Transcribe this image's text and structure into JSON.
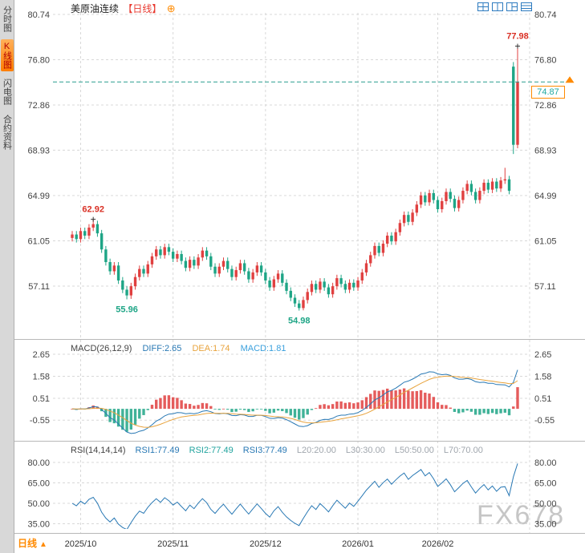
{
  "header": {
    "symbol": "美原油连续",
    "period": "【日线】",
    "add_icon": "⊕"
  },
  "sidebar": {
    "items": [
      {
        "label": "分时图",
        "active": false
      },
      {
        "label": "K线图",
        "active": true
      },
      {
        "label": "闪电图",
        "active": false
      },
      {
        "label": "合约资料",
        "active": false
      }
    ]
  },
  "toolbar": {
    "icons": [
      {
        "name": "layout-grid-2x2"
      },
      {
        "name": "layout-split-vertical"
      },
      {
        "name": "layout-one-plus-two"
      },
      {
        "name": "layout-rows"
      }
    ]
  },
  "bottom_tab": {
    "label": "日线",
    "arrow": "▲"
  },
  "watermark": "FX678",
  "colors": {
    "up": "#e04040",
    "down": "#1ea586",
    "diff_line": "#2878b4",
    "dea_line": "#e8a33d",
    "macd_readout": "#3aa0dd",
    "rsi1": "#2878b4",
    "rsi2": "#20a39e",
    "rsi3": "#2878b4",
    "muted": "#a0a6ad",
    "grid": "#d8d8d8",
    "separator": "#b8b8b8",
    "accent_orange": "#ff8a00",
    "annotation_red": "#d93025",
    "annotation_green": "#1ea586",
    "current_line": "#2a9d8f",
    "axis_text": "#444444",
    "watermark": "#c6c6c6",
    "icon_blue": "#2d7bbf",
    "period_red": "#e8392f"
  },
  "chart_data": [
    {
      "type": "candlestick",
      "title": "美原油连续 日线",
      "y_ticks": [
        "80.74",
        "76.80",
        "72.86",
        "68.93",
        "64.99",
        "61.05",
        "57.11"
      ],
      "y_range": [
        52.6,
        80.74
      ],
      "x_tick_labels": [
        "2025/10",
        "2025/11",
        "2025/12",
        "2026/01",
        "2026/02"
      ],
      "x_tick_indices": [
        2,
        24,
        46,
        68,
        87
      ],
      "current_price": "74.87",
      "annotations": [
        {
          "text": "62.92",
          "index": 5,
          "price": 62.92,
          "placement": "above",
          "color": "red",
          "marker": true
        },
        {
          "text": "55.96",
          "index": 13,
          "price": 55.96,
          "placement": "below",
          "color": "green",
          "marker": false
        },
        {
          "text": "54.98",
          "index": 54,
          "price": 54.98,
          "placement": "below",
          "color": "green",
          "marker": false
        },
        {
          "text": "77.98",
          "index": 106,
          "price": 77.98,
          "placement": "above",
          "color": "red",
          "marker": true
        }
      ],
      "candles": [
        [
          61.3,
          61.9,
          61.0,
          61.6
        ],
        [
          61.6,
          61.9,
          60.9,
          61.2
        ],
        [
          61.2,
          62.2,
          60.9,
          61.9
        ],
        [
          61.9,
          62.2,
          61.2,
          61.5
        ],
        [
          61.5,
          62.5,
          61.2,
          62.2
        ],
        [
          62.2,
          62.92,
          61.9,
          62.5
        ],
        [
          62.5,
          62.8,
          61.4,
          61.7
        ],
        [
          61.7,
          62.0,
          60.0,
          60.3
        ],
        [
          60.3,
          60.6,
          58.9,
          59.2
        ],
        [
          59.2,
          59.5,
          58.1,
          58.4
        ],
        [
          58.4,
          59.2,
          58.1,
          58.9
        ],
        [
          58.9,
          59.2,
          57.3,
          57.6
        ],
        [
          57.6,
          57.9,
          56.5,
          56.8
        ],
        [
          56.8,
          57.1,
          55.96,
          56.3
        ],
        [
          56.3,
          57.4,
          56.0,
          57.1
        ],
        [
          57.1,
          58.2,
          56.8,
          57.9
        ],
        [
          57.9,
          58.9,
          57.6,
          58.6
        ],
        [
          58.6,
          58.9,
          57.9,
          58.2
        ],
        [
          58.2,
          59.3,
          57.9,
          59.0
        ],
        [
          59.0,
          60.0,
          58.7,
          59.7
        ],
        [
          59.7,
          60.6,
          59.4,
          60.3
        ],
        [
          60.3,
          60.6,
          59.5,
          59.8
        ],
        [
          59.8,
          60.8,
          59.5,
          60.5
        ],
        [
          60.5,
          60.8,
          59.8,
          60.1
        ],
        [
          60.1,
          60.4,
          59.2,
          59.5
        ],
        [
          59.5,
          60.2,
          59.2,
          59.9
        ],
        [
          59.9,
          60.2,
          59.0,
          59.3
        ],
        [
          59.3,
          59.6,
          58.4,
          58.7
        ],
        [
          58.7,
          59.7,
          58.4,
          59.4
        ],
        [
          59.4,
          59.7,
          58.6,
          58.9
        ],
        [
          58.9,
          59.9,
          58.6,
          59.6
        ],
        [
          59.6,
          60.5,
          59.3,
          60.2
        ],
        [
          60.2,
          60.5,
          59.4,
          59.7
        ],
        [
          59.7,
          60.0,
          58.5,
          58.8
        ],
        [
          58.8,
          59.1,
          57.9,
          58.2
        ],
        [
          58.2,
          59.1,
          57.9,
          58.8
        ],
        [
          58.8,
          59.6,
          58.5,
          59.3
        ],
        [
          59.3,
          59.6,
          58.3,
          58.6
        ],
        [
          58.6,
          58.9,
          57.6,
          57.9
        ],
        [
          57.9,
          58.8,
          57.6,
          58.5
        ],
        [
          58.5,
          59.4,
          58.2,
          59.1
        ],
        [
          59.1,
          59.4,
          58.1,
          58.4
        ],
        [
          58.4,
          58.7,
          57.4,
          57.7
        ],
        [
          57.7,
          58.6,
          57.4,
          58.3
        ],
        [
          58.3,
          59.2,
          58.0,
          58.9
        ],
        [
          58.9,
          59.2,
          58.0,
          58.3
        ],
        [
          58.3,
          58.6,
          57.3,
          57.6
        ],
        [
          57.6,
          57.9,
          56.7,
          57.0
        ],
        [
          57.0,
          58.0,
          56.7,
          57.7
        ],
        [
          57.7,
          58.5,
          57.4,
          58.2
        ],
        [
          58.2,
          58.5,
          57.1,
          57.4
        ],
        [
          57.4,
          57.7,
          56.4,
          56.7
        ],
        [
          56.7,
          57.0,
          55.8,
          56.1
        ],
        [
          56.1,
          56.4,
          55.3,
          55.6
        ],
        [
          55.6,
          55.9,
          54.98,
          55.2
        ],
        [
          55.2,
          56.2,
          55.0,
          55.9
        ],
        [
          55.9,
          56.9,
          55.6,
          56.6
        ],
        [
          56.6,
          57.6,
          56.3,
          57.3
        ],
        [
          57.3,
          57.6,
          56.5,
          56.8
        ],
        [
          56.8,
          57.8,
          56.5,
          57.5
        ],
        [
          57.5,
          57.8,
          56.7,
          57.0
        ],
        [
          57.0,
          57.3,
          56.1,
          56.4
        ],
        [
          56.4,
          57.4,
          56.1,
          57.1
        ],
        [
          57.1,
          58.1,
          56.8,
          57.8
        ],
        [
          57.8,
          58.1,
          57.0,
          57.3
        ],
        [
          57.3,
          57.6,
          56.5,
          56.8
        ],
        [
          56.8,
          57.7,
          56.5,
          57.4
        ],
        [
          57.4,
          57.7,
          56.7,
          57.0
        ],
        [
          57.0,
          57.9,
          56.7,
          57.6
        ],
        [
          57.6,
          58.6,
          57.3,
          58.3
        ],
        [
          58.3,
          59.4,
          58.0,
          59.1
        ],
        [
          59.1,
          60.1,
          58.8,
          59.8
        ],
        [
          59.8,
          60.9,
          59.5,
          60.6
        ],
        [
          60.6,
          60.9,
          59.7,
          60.0
        ],
        [
          60.0,
          61.1,
          59.7,
          60.8
        ],
        [
          60.8,
          61.8,
          60.5,
          61.5
        ],
        [
          61.5,
          61.8,
          60.7,
          61.0
        ],
        [
          61.0,
          62.1,
          60.7,
          61.8
        ],
        [
          61.8,
          62.9,
          61.5,
          62.6
        ],
        [
          62.6,
          63.6,
          62.3,
          63.3
        ],
        [
          63.3,
          63.6,
          62.4,
          62.7
        ],
        [
          62.7,
          63.8,
          62.4,
          63.5
        ],
        [
          63.5,
          64.5,
          63.2,
          64.2
        ],
        [
          64.2,
          65.3,
          63.9,
          65.0
        ],
        [
          65.0,
          65.3,
          64.1,
          64.4
        ],
        [
          64.4,
          65.5,
          64.1,
          65.2
        ],
        [
          65.2,
          65.5,
          64.3,
          64.6
        ],
        [
          64.6,
          64.9,
          63.5,
          63.8
        ],
        [
          63.8,
          64.8,
          63.5,
          64.5
        ],
        [
          64.5,
          65.6,
          64.2,
          65.3
        ],
        [
          65.3,
          65.6,
          64.4,
          64.7
        ],
        [
          64.7,
          65.0,
          63.6,
          63.9
        ],
        [
          63.9,
          64.9,
          63.6,
          64.6
        ],
        [
          64.6,
          65.7,
          64.3,
          65.4
        ],
        [
          65.4,
          66.3,
          65.1,
          66.0
        ],
        [
          66.0,
          66.3,
          65.0,
          65.3
        ],
        [
          65.3,
          65.6,
          64.3,
          64.6
        ],
        [
          64.6,
          65.7,
          64.3,
          65.4
        ],
        [
          65.4,
          66.4,
          65.1,
          66.1
        ],
        [
          66.1,
          66.4,
          65.2,
          65.5
        ],
        [
          65.5,
          66.5,
          65.2,
          66.2
        ],
        [
          66.2,
          66.5,
          65.3,
          65.6
        ],
        [
          65.6,
          66.6,
          65.3,
          66.3
        ],
        [
          66.3,
          67.4,
          66.0,
          66.4
        ],
        [
          66.4,
          66.7,
          65.1,
          65.4
        ],
        [
          76.2,
          76.6,
          68.6,
          69.4
        ],
        [
          69.4,
          77.98,
          69.1,
          74.87
        ]
      ]
    },
    {
      "type": "macd",
      "title": "MACD(26,12,9)",
      "params": {
        "slow": 26,
        "fast": 12,
        "signal": 9
      },
      "readouts": {
        "diff": "DIFF:2.65",
        "dea": "DEA:1.74",
        "macd": "MACD:1.81"
      },
      "y_ticks": [
        "2.65",
        "1.58",
        "0.51",
        "-0.55"
      ],
      "derived_from": "chart_data.0.candles"
    },
    {
      "type": "rsi",
      "title": "RSI(14,14,14)",
      "params": {
        "period": 14
      },
      "readouts": {
        "rsi1": "RSI1:77.49",
        "rsi2": "RSI2:77.49",
        "rsi3": "RSI3:77.49",
        "l20": "L20:20.00",
        "l30": "L30:30.00",
        "l50": "L50:50.00",
        "l70": "L70:70.00"
      },
      "y_ticks": [
        "80.00",
        "65.00",
        "50.00",
        "35.00"
      ],
      "derived_from": "chart_data.0.candles"
    }
  ]
}
